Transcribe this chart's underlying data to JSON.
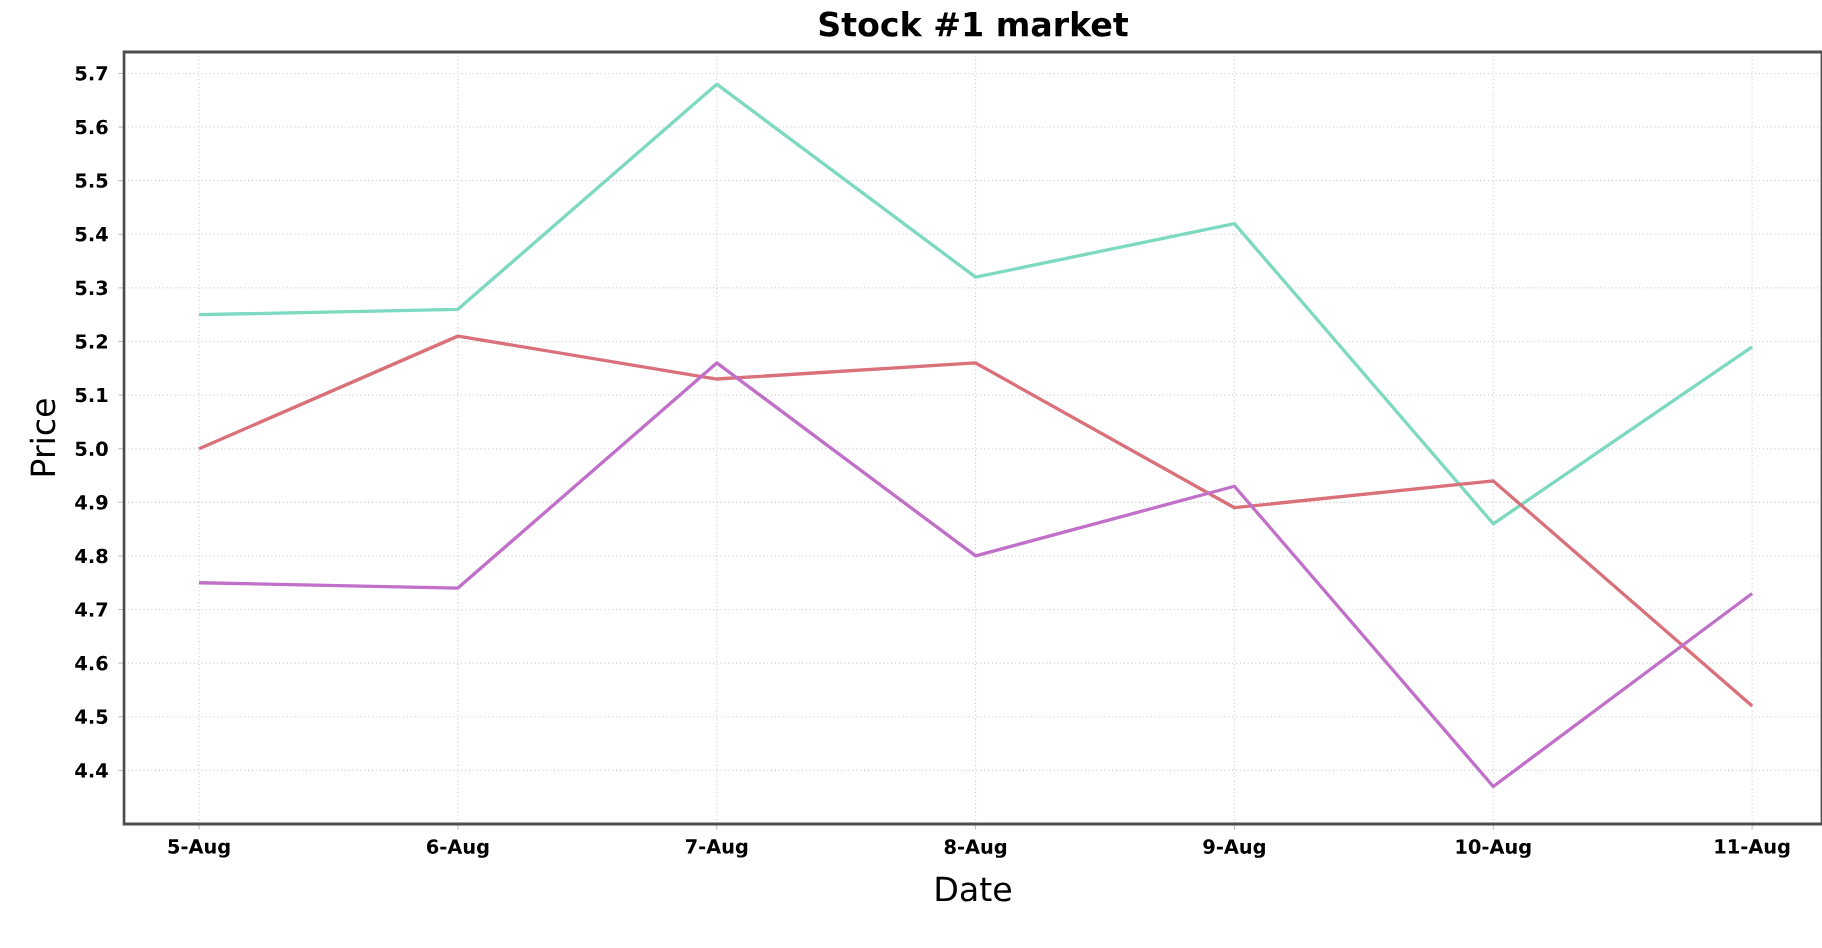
{
  "chart_data": {
    "type": "line",
    "title": "Stock #1 market",
    "xlabel": "Date",
    "ylabel": "Price",
    "categories": [
      "5-Aug",
      "6-Aug",
      "7-Aug",
      "8-Aug",
      "9-Aug",
      "10-Aug",
      "11-Aug"
    ],
    "series": [
      {
        "color": "#7dd9c0",
        "values": [
          5.25,
          5.26,
          5.68,
          5.32,
          5.42,
          4.86,
          5.19
        ]
      },
      {
        "color": "#d9707a",
        "values": [
          5.0,
          5.21,
          5.13,
          5.16,
          4.89,
          4.94,
          4.52
        ]
      },
      {
        "color": "#c070c8",
        "values": [
          4.75,
          4.74,
          5.16,
          4.8,
          4.93,
          4.37,
          4.73
        ]
      }
    ],
    "ylim": [
      4.3,
      5.74
    ],
    "yticks": [
      4.4,
      4.5,
      4.6,
      4.7,
      4.8,
      4.9,
      {
        "value": 5.0,
        "label": "5.0"
      },
      5.1,
      5.2,
      5.3,
      5.4,
      5.5,
      5.6,
      5.7
    ],
    "grid": true,
    "marker": "none",
    "line_style": "solid"
  }
}
